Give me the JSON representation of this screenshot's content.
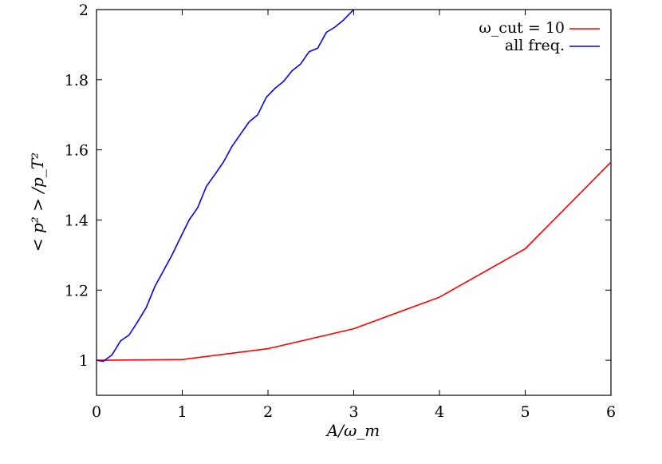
{
  "chart_data": {
    "type": "line",
    "xlabel": "A/ω_m",
    "ylabel": "< p² > /p_T²",
    "xlim": [
      0,
      6
    ],
    "ylim": [
      0.9,
      2.0
    ],
    "xticks": [
      "0",
      "1",
      "2",
      "3",
      "4",
      "5",
      "6"
    ],
    "yticks": [
      "1",
      "1.2",
      "1.4",
      "1.6",
      "1.8",
      "2"
    ],
    "grid": false,
    "legend_position": "top-right",
    "series": [
      {
        "name": "ω_cut = 10",
        "color": "#ff0000",
        "x": [
          0.0,
          0.1,
          1.0,
          2.0,
          3.0,
          4.0,
          5.0,
          6.0
        ],
        "y": [
          1.0,
          1.0,
          1.002,
          1.033,
          1.09,
          1.18,
          1.318,
          1.565
        ]
      },
      {
        "name": "all freq.",
        "color": "#0000ff",
        "x": [
          0.0,
          0.08,
          0.18,
          0.28,
          0.38,
          0.48,
          0.58,
          0.68,
          0.78,
          0.88,
          0.98,
          1.08,
          1.18,
          1.28,
          1.38,
          1.48,
          1.58,
          1.68,
          1.78,
          1.88,
          1.98,
          2.08,
          2.18,
          2.28,
          2.38,
          2.48,
          2.58,
          2.68,
          2.78,
          2.88,
          2.98,
          3.0
        ],
        "y": [
          1.0,
          0.997,
          1.015,
          1.055,
          1.072,
          1.11,
          1.15,
          1.21,
          1.255,
          1.3,
          1.35,
          1.4,
          1.435,
          1.495,
          1.53,
          1.565,
          1.61,
          1.645,
          1.68,
          1.7,
          1.75,
          1.775,
          1.795,
          1.825,
          1.845,
          1.88,
          1.89,
          1.935,
          1.95,
          1.97,
          1.995,
          2.0
        ]
      }
    ]
  }
}
